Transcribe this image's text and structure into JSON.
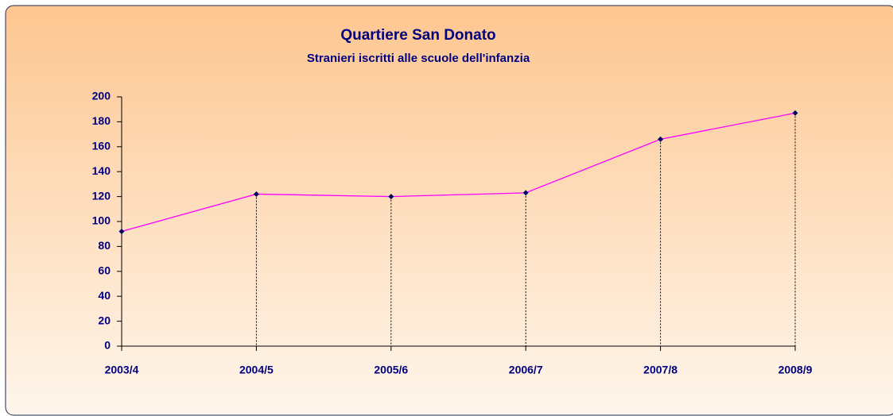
{
  "chart_data": {
    "type": "line",
    "title": "Quartiere San Donato",
    "subtitle": "Stranieri iscritti alle scuole dell'infanzia",
    "categories": [
      "2003/4",
      "2004/5",
      "2005/6",
      "2006/7",
      "2007/8",
      "2008/9"
    ],
    "values": [
      92,
      122,
      120,
      123,
      166,
      187
    ],
    "color": "#ff00ff",
    "marker_color": "#000066",
    "ylim": [
      0,
      200
    ],
    "yticks": [
      0,
      20,
      40,
      60,
      80,
      100,
      120,
      140,
      160,
      180,
      200
    ],
    "drop_lines": true
  }
}
